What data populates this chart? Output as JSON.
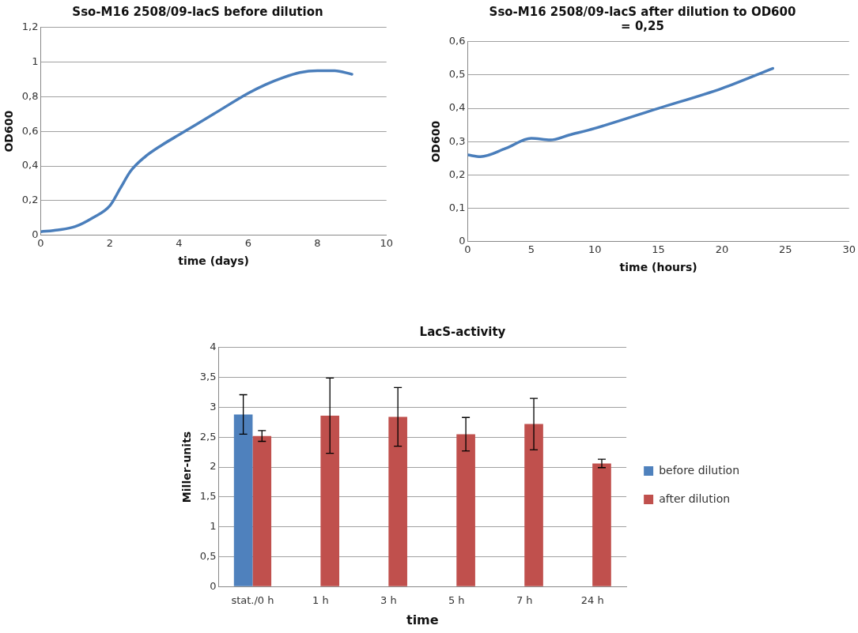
{
  "chart_data": [
    {
      "type": "line",
      "title": "Sso-M16 2508/09-lacS before dilution",
      "xlabel": "time (days)",
      "ylabel": "OD600",
      "grid": "y",
      "marker": "none",
      "legend": false,
      "series": [
        {
          "color": "#4a7ebb",
          "x": [
            0,
            0.5,
            1,
            1.5,
            2,
            2.3,
            2.6,
            3,
            3.5,
            4,
            5,
            6,
            6.5,
            7,
            7.5,
            8,
            8.5,
            9
          ],
          "values": [
            0.02,
            0.03,
            0.05,
            0.1,
            0.17,
            0.27,
            0.37,
            0.45,
            0.52,
            0.58,
            0.7,
            0.82,
            0.87,
            0.91,
            0.94,
            0.95,
            0.95,
            0.93
          ]
        }
      ],
      "xlim": [
        0,
        10
      ],
      "xticks": [
        0,
        2,
        4,
        6,
        8,
        10
      ],
      "ylim": [
        0,
        1.2
      ],
      "yticks": [
        0,
        {
          "value": 0.2,
          "label": "0,2"
        },
        {
          "value": 0.4,
          "label": "0,4"
        },
        {
          "value": 0.6,
          "label": "0,6"
        },
        {
          "value": 0.8,
          "label": "0,8"
        },
        1,
        {
          "value": 1.2,
          "label": "1,2"
        }
      ]
    },
    {
      "type": "line",
      "title": "Sso-M16 2508/09-lacS after dilution to OD600 = 0,25",
      "xlabel": "time (hours)",
      "ylabel": "OD600",
      "grid": "y",
      "marker": "none",
      "legend": false,
      "series": [
        {
          "color": "#4a7ebb",
          "x": [
            0,
            1,
            3,
            5,
            6.5,
            8,
            10,
            15,
            20,
            24
          ],
          "values": [
            0.26,
            0.255,
            0.28,
            0.31,
            0.305,
            0.32,
            0.34,
            0.4,
            0.46,
            0.52
          ]
        }
      ],
      "xlim": [
        0,
        30
      ],
      "xticks": [
        0,
        5,
        10,
        15,
        20,
        25,
        30
      ],
      "ylim": [
        0,
        0.6
      ],
      "yticks": [
        0,
        {
          "value": 0.1,
          "label": "0,1"
        },
        {
          "value": 0.2,
          "label": "0,2"
        },
        {
          "value": 0.3,
          "label": "0,3"
        },
        {
          "value": 0.4,
          "label": "0,4"
        },
        {
          "value": 0.5,
          "label": "0,5"
        },
        {
          "value": 0.6,
          "label": "0,6"
        }
      ]
    },
    {
      "type": "bar",
      "title": "LacS-activity",
      "xlabel": "time",
      "ylabel": "Miller-units",
      "grid": "y",
      "legend": "right",
      "categories": [
        "stat./0 h",
        "1 h",
        "3 h",
        "5 h",
        "7 h",
        "24 h"
      ],
      "series": [
        {
          "name": "before dilution",
          "color": "#4f81bd",
          "values": [
            2.88,
            null,
            null,
            null,
            null,
            null
          ],
          "errors": [
            0.33,
            null,
            null,
            null,
            null,
            null
          ]
        },
        {
          "name": "after dilution",
          "color": "#c0504d",
          "values": [
            2.52,
            2.86,
            2.84,
            2.55,
            2.72,
            2.06
          ],
          "errors": [
            0.09,
            0.63,
            0.49,
            0.28,
            0.43,
            0.07
          ]
        }
      ],
      "ylim": [
        0,
        4
      ],
      "yticks": [
        0,
        {
          "value": 0.5,
          "label": "0,5"
        },
        1,
        {
          "value": 1.5,
          "label": "1,5"
        },
        2,
        {
          "value": 2.5,
          "label": "2,5"
        },
        3,
        {
          "value": 3.5,
          "label": "3,5"
        },
        4
      ]
    }
  ]
}
